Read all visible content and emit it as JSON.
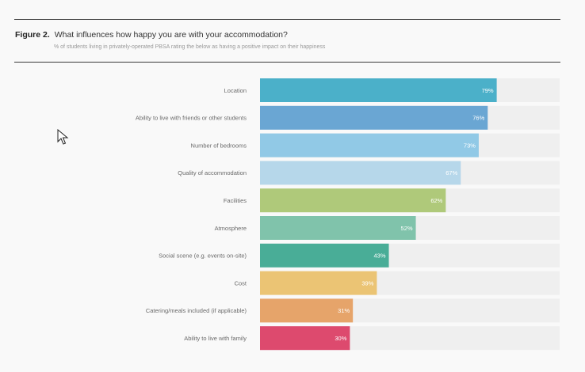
{
  "figure": {
    "label": "Figure 2.",
    "title": "What influences how happy you are with your accommodation?",
    "subtitle": "% of students living in privately-operated PBSA rating the below as having a positive impact on their happiness"
  },
  "colors": {
    "track": "#efefef",
    "value_text": "#ffffff",
    "category_text": "#6a6a6a"
  },
  "chart_data": {
    "type": "bar",
    "orientation": "horizontal",
    "title": "What influences how happy you are with your accommodation?",
    "subtitle": "% of students living in privately-operated PBSA rating the below as having a positive impact on their happiness",
    "xlabel": "",
    "ylabel": "",
    "xlim": [
      0,
      100
    ],
    "grid": false,
    "categories": [
      "Location",
      "Ability to live with friends or other students",
      "Number of bedrooms",
      "Quality of accommodation",
      "Facilities",
      "Atmosphere",
      "Social scene (e.g. events on-site)",
      "Cost",
      "Catering/meals included (if applicable)",
      "Ability to live with family"
    ],
    "values": [
      79,
      76,
      73,
      67,
      62,
      52,
      43,
      39,
      31,
      30
    ],
    "value_labels": [
      "79%",
      "76%",
      "73%",
      "67%",
      "62%",
      "52%",
      "43%",
      "39%",
      "31%",
      "30%"
    ],
    "bar_colors": [
      "#4bb0c9",
      "#6aa6d3",
      "#91c9e6",
      "#b6d7ea",
      "#afc97a",
      "#80c3ab",
      "#49ad97",
      "#ebc474",
      "#e6a46a",
      "#dd4a6e"
    ]
  }
}
